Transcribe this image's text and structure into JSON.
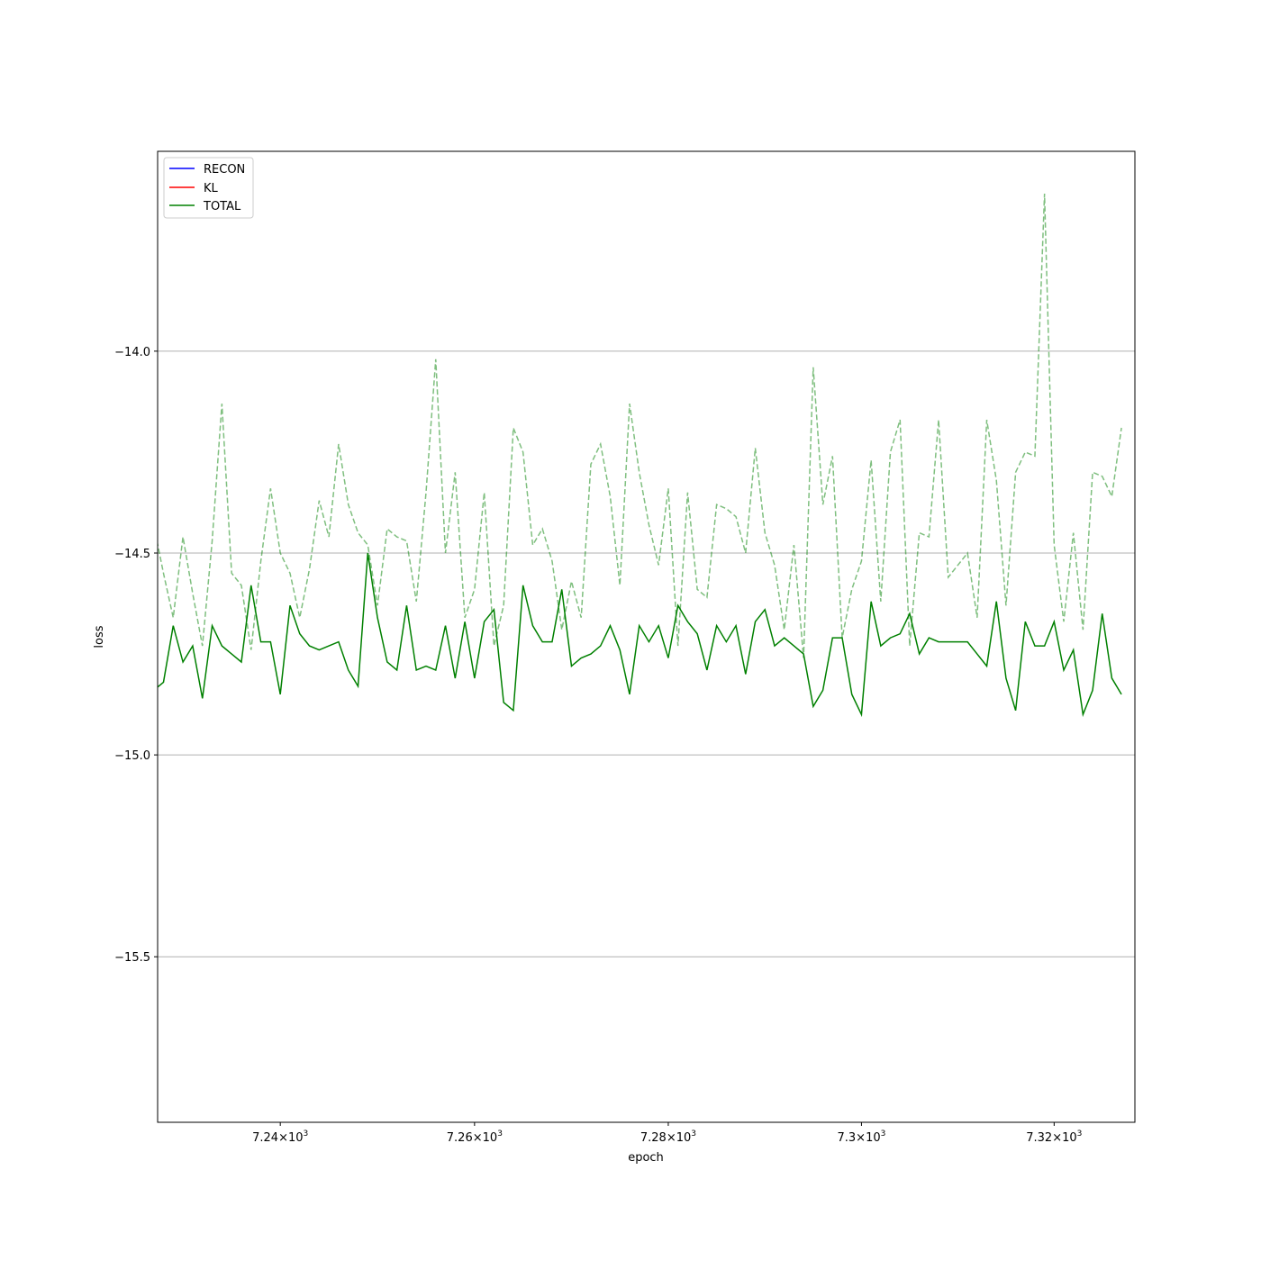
{
  "chart_data": {
    "type": "line",
    "xlabel": "epoch",
    "ylabel": "loss",
    "xscale": "log",
    "xlim": [
      7227.4,
      7328.4
    ],
    "ylim": [
      -15.91,
      -13.505
    ],
    "grid": "y-major",
    "legend": {
      "placement": "top-left",
      "entries": [
        {
          "label": "RECON",
          "color": "#0000ff"
        },
        {
          "label": "KL",
          "color": "#ff0000"
        },
        {
          "label": "TOTAL",
          "color": "#008000"
        }
      ]
    },
    "xticks": [
      {
        "value": 7240,
        "mantissa": "7.24"
      },
      {
        "value": 7260,
        "mantissa": "7.26"
      },
      {
        "value": 7280,
        "mantissa": "7.28"
      },
      {
        "value": 7300,
        "mantissa": "7.3"
      },
      {
        "value": 7320,
        "mantissa": "7.32"
      }
    ],
    "xtick_base": "10",
    "xtick_exp": "3",
    "yticks": [
      {
        "value": -14.0,
        "label": "−14.0"
      },
      {
        "value": -14.5,
        "label": "−14.5"
      },
      {
        "value": -15.0,
        "label": "−15.0"
      },
      {
        "value": -15.5,
        "label": "−15.5"
      }
    ],
    "x_start": 7227,
    "series": [
      {
        "name": "TOTAL",
        "style": "solid",
        "color": "#008000",
        "opacity": 1.0,
        "values": [
          -14.84,
          -14.82,
          -14.68,
          -14.77,
          -14.73,
          -14.86,
          -14.68,
          -14.73,
          -14.75,
          -14.77,
          -14.58,
          -14.72,
          -14.72,
          -14.85,
          -14.63,
          -14.7,
          -14.73,
          -14.74,
          -14.73,
          -14.72,
          -14.79,
          -14.83,
          -14.5,
          -14.66,
          -14.77,
          -14.79,
          -14.63,
          -14.79,
          -14.78,
          -14.79,
          -14.68,
          -14.81,
          -14.67,
          -14.81,
          -14.67,
          -14.64,
          -14.87,
          -14.89,
          -14.58,
          -14.68,
          -14.72,
          -14.72,
          -14.59,
          -14.78,
          -14.76,
          -14.75,
          -14.73,
          -14.68,
          -14.74,
          -14.85,
          -14.68,
          -14.72,
          -14.68,
          -14.76,
          -14.63,
          -14.67,
          -14.7,
          -14.79,
          -14.68,
          -14.72,
          -14.68,
          -14.8,
          -14.67,
          -14.64,
          -14.73,
          -14.71,
          -14.73,
          -14.75,
          -14.88,
          -14.84,
          -14.71,
          -14.71,
          -14.85,
          -14.9,
          -14.62,
          -14.73,
          -14.71,
          -14.7,
          -14.65,
          -14.75,
          -14.71,
          -14.72,
          -14.72,
          -14.72,
          -14.72,
          -14.75,
          -14.78,
          -14.62,
          -14.81,
          -14.89,
          -14.67,
          -14.73,
          -14.73,
          -14.67,
          -14.79,
          -14.74,
          -14.9,
          -14.84,
          -14.65,
          -14.81,
          -14.85
        ]
      },
      {
        "name": "",
        "style": "dashed",
        "color": "#008000",
        "opacity": 0.5,
        "values": [
          -14.43,
          -14.55,
          -14.66,
          -14.46,
          -14.6,
          -14.73,
          -14.47,
          -14.13,
          -14.55,
          -14.58,
          -14.74,
          -14.52,
          -14.34,
          -14.5,
          -14.55,
          -14.66,
          -14.54,
          -14.37,
          -14.46,
          -14.23,
          -14.38,
          -14.45,
          -14.48,
          -14.63,
          -14.44,
          -14.46,
          -14.47,
          -14.62,
          -14.35,
          -14.02,
          -14.5,
          -14.3,
          -14.66,
          -14.59,
          -14.35,
          -14.73,
          -14.63,
          -14.19,
          -14.25,
          -14.48,
          -14.44,
          -14.52,
          -14.69,
          -14.57,
          -14.66,
          -14.28,
          -14.23,
          -14.36,
          -14.58,
          -14.13,
          -14.3,
          -14.43,
          -14.53,
          -14.34,
          -14.73,
          -14.35,
          -14.59,
          -14.61,
          -14.38,
          -14.39,
          -14.41,
          -14.5,
          -14.24,
          -14.45,
          -14.53,
          -14.69,
          -14.48,
          -14.76,
          -14.04,
          -14.38,
          -14.26,
          -14.71,
          -14.59,
          -14.52,
          -14.27,
          -14.62,
          -14.25,
          -14.17,
          -14.73,
          -14.45,
          -14.46,
          -14.17,
          -14.56,
          -14.53,
          -14.5,
          -14.66,
          -14.17,
          -14.32,
          -14.63,
          -14.3,
          -14.25,
          -14.26,
          -13.61,
          -14.48,
          -14.67,
          -14.45,
          -14.69,
          -14.3,
          -14.31,
          -14.36,
          -14.19
        ]
      }
    ]
  }
}
